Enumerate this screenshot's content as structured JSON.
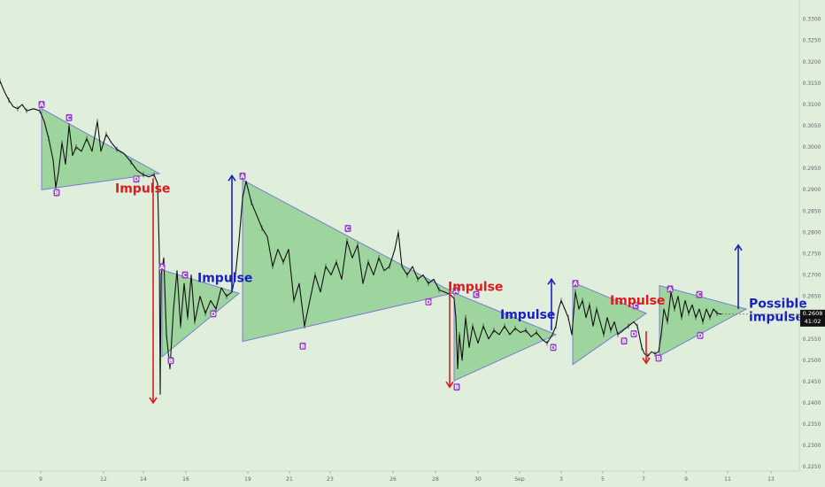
{
  "chart_data": {
    "type": "line",
    "symbol": "",
    "ylim": [
      0.224,
      0.3345
    ],
    "y_ticks": [
      "0.3300",
      "0.3250",
      "0.3200",
      "0.3150",
      "0.3100",
      "0.3050",
      "0.3000",
      "0.2950",
      "0.2900",
      "0.2850",
      "0.2800",
      "0.2750",
      "0.2700",
      "0.2650",
      "0.2600",
      "0.2550",
      "0.2500",
      "0.2450",
      "0.2400",
      "0.2350",
      "0.2300",
      "0.2250"
    ],
    "x_ticks": [
      "9",
      "12",
      "14",
      "16",
      "19",
      "21",
      "23",
      "26",
      "28",
      "30",
      "Sep",
      "3",
      "5",
      "7",
      "9",
      "11",
      "13"
    ],
    "current_price": "0.2608",
    "countdown": "41:02",
    "grid": false,
    "colors": {
      "background": "#dfefdc",
      "triangle_fill": "#8dcd8d",
      "triangle_edge": "#7b7bd6",
      "price_line": "#111111",
      "bear_impulse": "#e0191d",
      "bull_impulse": "#1a1fc4",
      "point_badge": "#9a3dd0",
      "price_badge": "#111111"
    },
    "price_series": [
      [
        0,
        0.3155
      ],
      [
        5,
        0.313
      ],
      [
        10,
        0.311
      ],
      [
        15,
        0.3095
      ],
      [
        20,
        0.309
      ],
      [
        25,
        0.31
      ],
      [
        30,
        0.3085
      ],
      [
        38,
        0.309
      ],
      [
        45,
        0.3085
      ],
      [
        50,
        0.306
      ],
      [
        55,
        0.302
      ],
      [
        60,
        0.297
      ],
      [
        63,
        0.2905
      ],
      [
        66,
        0.294
      ],
      [
        70,
        0.301
      ],
      [
        74,
        0.296
      ],
      [
        78,
        0.305
      ],
      [
        82,
        0.298
      ],
      [
        86,
        0.3
      ],
      [
        92,
        0.299
      ],
      [
        98,
        0.302
      ],
      [
        104,
        0.299
      ],
      [
        110,
        0.306
      ],
      [
        114,
        0.299
      ],
      [
        120,
        0.303
      ],
      [
        126,
        0.301
      ],
      [
        132,
        0.2995
      ],
      [
        140,
        0.2985
      ],
      [
        148,
        0.2965
      ],
      [
        155,
        0.2945
      ],
      [
        162,
        0.2935
      ],
      [
        168,
        0.293
      ],
      [
        174,
        0.2935
      ],
      [
        178,
        0.2915
      ],
      [
        180,
        0.275
      ],
      [
        181,
        0.242
      ],
      [
        182,
        0.27
      ],
      [
        185,
        0.274
      ],
      [
        188,
        0.256
      ],
      [
        192,
        0.248
      ],
      [
        196,
        0.262
      ],
      [
        200,
        0.271
      ],
      [
        204,
        0.258
      ],
      [
        208,
        0.268
      ],
      [
        212,
        0.26
      ],
      [
        216,
        0.27
      ],
      [
        220,
        0.259
      ],
      [
        226,
        0.265
      ],
      [
        232,
        0.261
      ],
      [
        238,
        0.264
      ],
      [
        244,
        0.262
      ],
      [
        250,
        0.267
      ],
      [
        256,
        0.265
      ],
      [
        262,
        0.266
      ],
      [
        266,
        0.27
      ],
      [
        270,
        0.278
      ],
      [
        274,
        0.288
      ],
      [
        278,
        0.292
      ],
      [
        284,
        0.287
      ],
      [
        290,
        0.284
      ],
      [
        296,
        0.281
      ],
      [
        302,
        0.279
      ],
      [
        308,
        0.272
      ],
      [
        314,
        0.276
      ],
      [
        320,
        0.273
      ],
      [
        326,
        0.276
      ],
      [
        332,
        0.264
      ],
      [
        338,
        0.268
      ],
      [
        344,
        0.258
      ],
      [
        350,
        0.264
      ],
      [
        356,
        0.27
      ],
      [
        362,
        0.266
      ],
      [
        368,
        0.272
      ],
      [
        374,
        0.27
      ],
      [
        380,
        0.273
      ],
      [
        386,
        0.269
      ],
      [
        392,
        0.278
      ],
      [
        398,
        0.274
      ],
      [
        404,
        0.277
      ],
      [
        410,
        0.268
      ],
      [
        416,
        0.273
      ],
      [
        422,
        0.27
      ],
      [
        428,
        0.274
      ],
      [
        434,
        0.271
      ],
      [
        440,
        0.272
      ],
      [
        446,
        0.276
      ],
      [
        450,
        0.28
      ],
      [
        454,
        0.272
      ],
      [
        460,
        0.27
      ],
      [
        466,
        0.272
      ],
      [
        472,
        0.269
      ],
      [
        478,
        0.27
      ],
      [
        484,
        0.268
      ],
      [
        490,
        0.269
      ],
      [
        496,
        0.2665
      ],
      [
        502,
        0.266
      ],
      [
        508,
        0.2655
      ],
      [
        513,
        0.2645
      ],
      [
        515,
        0.26
      ],
      [
        517,
        0.248
      ],
      [
        519,
        0.256
      ],
      [
        522,
        0.25
      ],
      [
        526,
        0.26
      ],
      [
        530,
        0.253
      ],
      [
        534,
        0.258
      ],
      [
        540,
        0.254
      ],
      [
        546,
        0.258
      ],
      [
        552,
        0.255
      ],
      [
        558,
        0.257
      ],
      [
        564,
        0.256
      ],
      [
        570,
        0.258
      ],
      [
        576,
        0.256
      ],
      [
        582,
        0.2575
      ],
      [
        588,
        0.2565
      ],
      [
        594,
        0.257
      ],
      [
        600,
        0.2555
      ],
      [
        606,
        0.2565
      ],
      [
        612,
        0.255
      ],
      [
        618,
        0.254
      ],
      [
        624,
        0.256
      ],
      [
        628,
        0.258
      ],
      [
        631,
        0.262
      ],
      [
        634,
        0.264
      ],
      [
        638,
        0.262
      ],
      [
        642,
        0.26
      ],
      [
        646,
        0.256
      ],
      [
        650,
        0.266
      ],
      [
        654,
        0.262
      ],
      [
        658,
        0.264
      ],
      [
        662,
        0.26
      ],
      [
        666,
        0.263
      ],
      [
        670,
        0.258
      ],
      [
        674,
        0.262
      ],
      [
        678,
        0.259
      ],
      [
        682,
        0.256
      ],
      [
        686,
        0.26
      ],
      [
        690,
        0.257
      ],
      [
        694,
        0.259
      ],
      [
        698,
        0.256
      ],
      [
        704,
        0.257
      ],
      [
        710,
        0.258
      ],
      [
        716,
        0.259
      ],
      [
        720,
        0.258
      ],
      [
        722,
        0.256
      ],
      [
        725,
        0.253
      ],
      [
        728,
        0.2515
      ],
      [
        732,
        0.251
      ],
      [
        736,
        0.252
      ],
      [
        740,
        0.2515
      ],
      [
        744,
        0.252
      ],
      [
        747,
        0.256
      ],
      [
        750,
        0.262
      ],
      [
        754,
        0.259
      ],
      [
        758,
        0.266
      ],
      [
        762,
        0.262
      ],
      [
        766,
        0.265
      ],
      [
        770,
        0.26
      ],
      [
        774,
        0.264
      ],
      [
        778,
        0.261
      ],
      [
        782,
        0.263
      ],
      [
        786,
        0.26
      ],
      [
        790,
        0.262
      ],
      [
        794,
        0.259
      ],
      [
        798,
        0.262
      ],
      [
        802,
        0.26
      ],
      [
        806,
        0.262
      ],
      [
        810,
        0.261
      ],
      [
        815,
        0.2608
      ]
    ],
    "triangles": [
      {
        "vertices": [
          [
            47,
            0.309
          ],
          [
            47,
            0.29
          ],
          [
            180,
            0.2938
          ]
        ]
      },
      {
        "vertices": [
          [
            183,
            0.2712
          ],
          [
            183,
            0.2508
          ],
          [
            270,
            0.2657
          ]
        ]
      },
      {
        "vertices": [
          [
            274,
            0.2923
          ],
          [
            274,
            0.2544
          ],
          [
            513,
            0.2658
          ]
        ]
      },
      {
        "vertices": [
          [
            513,
            0.2658
          ],
          [
            513,
            0.2452
          ],
          [
            628,
            0.256
          ]
        ]
      },
      {
        "vertices": [
          [
            647,
            0.2683
          ],
          [
            647,
            0.249
          ],
          [
            730,
            0.261
          ]
        ]
      },
      {
        "vertices": [
          [
            745,
            0.2675
          ],
          [
            745,
            0.251
          ],
          [
            843,
            0.262
          ]
        ]
      }
    ],
    "point_labels": [
      {
        "t": "A",
        "x": 47,
        "y": 0.31
      },
      {
        "t": "B",
        "x": 64,
        "y": 0.2893
      },
      {
        "t": "C",
        "x": 78,
        "y": 0.3069
      },
      {
        "t": "D",
        "x": 154,
        "y": 0.2925
      },
      {
        "t": "A",
        "x": 183,
        "y": 0.2719
      },
      {
        "t": "B",
        "x": 193,
        "y": 0.2499
      },
      {
        "t": "C",
        "x": 209,
        "y": 0.27
      },
      {
        "t": "D",
        "x": 241,
        "y": 0.2609
      },
      {
        "t": "A",
        "x": 274,
        "y": 0.2932
      },
      {
        "t": "B",
        "x": 342,
        "y": 0.2533
      },
      {
        "t": "C",
        "x": 393,
        "y": 0.2809
      },
      {
        "t": "D",
        "x": 484,
        "y": 0.2637
      },
      {
        "t": "A",
        "x": 515,
        "y": 0.2663
      },
      {
        "t": "B",
        "x": 516,
        "y": 0.2437
      },
      {
        "t": "C",
        "x": 538,
        "y": 0.2654
      },
      {
        "t": "D",
        "x": 625,
        "y": 0.253
      },
      {
        "t": "A",
        "x": 650,
        "y": 0.268
      },
      {
        "t": "B",
        "x": 705,
        "y": 0.2545
      },
      {
        "t": "C",
        "x": 718,
        "y": 0.2628
      },
      {
        "t": "D",
        "x": 716,
        "y": 0.2562
      },
      {
        "t": "A",
        "x": 757,
        "y": 0.2667
      },
      {
        "t": "B",
        "x": 744,
        "y": 0.2505
      },
      {
        "t": "C",
        "x": 790,
        "y": 0.2654
      },
      {
        "t": "D",
        "x": 791,
        "y": 0.2558
      }
    ],
    "impulse_arrows": [
      {
        "dir": "down",
        "x": 173,
        "y0": 0.2927,
        "y1": 0.24,
        "color": "bear"
      },
      {
        "dir": "up",
        "x": 262,
        "y0": 0.266,
        "y1": 0.2933,
        "color": "bull"
      },
      {
        "dir": "down",
        "x": 508,
        "y0": 0.2662,
        "y1": 0.2437,
        "color": "bear"
      },
      {
        "dir": "up",
        "x": 623,
        "y0": 0.257,
        "y1": 0.269,
        "color": "bull"
      },
      {
        "dir": "down",
        "x": 730,
        "y0": 0.2568,
        "y1": 0.2493,
        "color": "bear"
      },
      {
        "dir": "up",
        "x": 834,
        "y0": 0.262,
        "y1": 0.277,
        "color": "bull"
      }
    ],
    "annotations": [
      {
        "text": "Impulse",
        "x": 130,
        "y": 0.2893,
        "color": "bear",
        "lines": null
      },
      {
        "text": "Impulse",
        "x": 223,
        "y": 0.2683,
        "color": "bull",
        "lines": null
      },
      {
        "text": "Impulse",
        "x": 506,
        "y": 0.2663,
        "color": "bear",
        "lines": null
      },
      {
        "text": "Impulse",
        "x": 565,
        "y": 0.2597,
        "color": "bull",
        "lines": null
      },
      {
        "text": "Impulse",
        "x": 689,
        "y": 0.263,
        "color": "bear",
        "lines": null
      },
      {
        "text": "",
        "x": 846,
        "y": 0.2623,
        "color": "bull",
        "lines": [
          "Possible",
          "impulse"
        ]
      }
    ]
  }
}
